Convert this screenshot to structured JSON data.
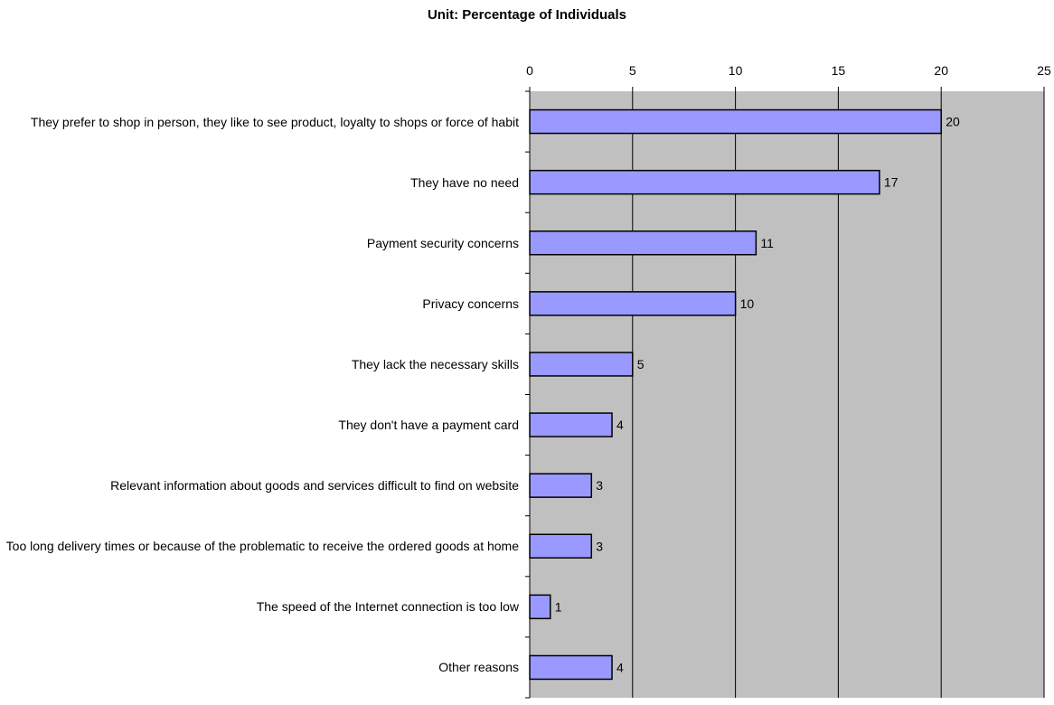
{
  "chart_data": {
    "type": "bar",
    "orientation": "horizontal",
    "title": "Unit: Percentage of Individuals",
    "xlim": [
      0,
      25
    ],
    "ticks": [
      0,
      5,
      10,
      15,
      20,
      25
    ],
    "grid": true,
    "categories": [
      "They prefer to shop in person, they like to see product, loyalty to shops or force of habit",
      "They have no need",
      "Payment security concerns",
      "Privacy concerns",
      "They lack the necessary skills",
      "They don't have a payment card",
      "Relevant information about goods and services difficult to find on website",
      "Too long delivery times or because of the problematic to receive the ordered goods at home",
      "The speed of the Internet connection is too low",
      "Other reasons"
    ],
    "values": [
      20,
      17,
      11,
      10,
      5,
      4,
      3,
      3,
      1,
      4
    ],
    "colors": {
      "bar_fill": "#9999ff",
      "bar_stroke": "#000000",
      "plot_bg": "#c0c0c0",
      "gridline": "#000000"
    }
  }
}
